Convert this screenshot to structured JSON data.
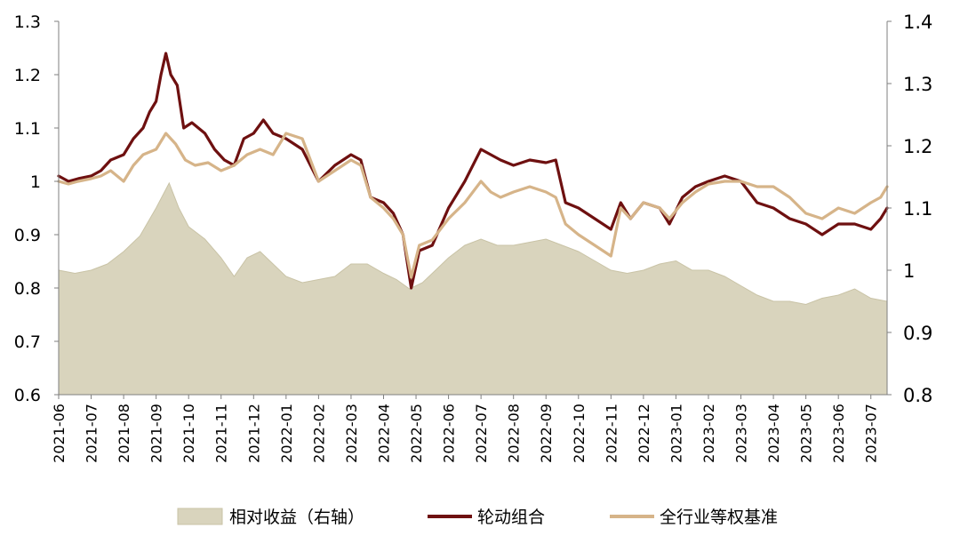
{
  "chart_data": {
    "type": "line",
    "x": [
      "2021-06",
      "2021-07",
      "2021-08",
      "2021-09",
      "2021-10",
      "2021-11",
      "2021-12",
      "2022-01",
      "2022-02",
      "2022-03",
      "2022-04",
      "2022-05",
      "2022-06",
      "2022-07",
      "2022-08",
      "2022-09",
      "2022-10",
      "2022-11",
      "2022-12",
      "2023-01",
      "2023-02",
      "2023-03",
      "2023-04",
      "2023-05",
      "2023-06",
      "2023-07"
    ],
    "ylim_left": [
      0.6,
      1.3
    ],
    "yticks_left": [
      "0.6",
      "0.7",
      "0.8",
      "0.9",
      "1",
      "1.1",
      "1.2",
      "1.3"
    ],
    "ylim_right": [
      0.8,
      1.4
    ],
    "yticks_right": [
      "0.8",
      "0.9",
      "1",
      "1.1",
      "1.2",
      "1.3",
      "1.4"
    ],
    "series": [
      {
        "name": "相对收益（右轴）",
        "type": "area",
        "axis": "right",
        "color": "#d9d4bd",
        "points": [
          [
            0,
            1.0
          ],
          [
            0.5,
            0.995
          ],
          [
            1,
            1.0
          ],
          [
            1.5,
            1.01
          ],
          [
            2,
            1.03
          ],
          [
            2.5,
            1.055
          ],
          [
            3,
            1.1
          ],
          [
            3.4,
            1.14
          ],
          [
            3.7,
            1.1
          ],
          [
            4,
            1.07
          ],
          [
            4.5,
            1.05
          ],
          [
            5,
            1.02
          ],
          [
            5.4,
            0.99
          ],
          [
            5.8,
            1.02
          ],
          [
            6.2,
            1.03
          ],
          [
            6.6,
            1.01
          ],
          [
            7,
            0.99
          ],
          [
            7.5,
            0.98
          ],
          [
            8,
            0.985
          ],
          [
            8.5,
            0.99
          ],
          [
            9,
            1.01
          ],
          [
            9.5,
            1.01
          ],
          [
            10,
            0.995
          ],
          [
            10.4,
            0.985
          ],
          [
            10.8,
            0.97
          ],
          [
            11.2,
            0.98
          ],
          [
            11.6,
            1.0
          ],
          [
            12,
            1.02
          ],
          [
            12.5,
            1.04
          ],
          [
            13,
            1.05
          ],
          [
            13.5,
            1.04
          ],
          [
            14,
            1.04
          ],
          [
            14.5,
            1.045
          ],
          [
            15,
            1.05
          ],
          [
            15.5,
            1.04
          ],
          [
            16,
            1.03
          ],
          [
            16.5,
            1.015
          ],
          [
            17,
            1.0
          ],
          [
            17.5,
            0.995
          ],
          [
            18,
            1.0
          ],
          [
            18.5,
            1.01
          ],
          [
            19,
            1.015
          ],
          [
            19.5,
            1.0
          ],
          [
            20,
            1.0
          ],
          [
            20.5,
            0.99
          ],
          [
            21,
            0.975
          ],
          [
            21.5,
            0.96
          ],
          [
            22,
            0.95
          ],
          [
            22.5,
            0.95
          ],
          [
            23,
            0.945
          ],
          [
            23.5,
            0.955
          ],
          [
            24,
            0.96
          ],
          [
            24.5,
            0.97
          ],
          [
            25,
            0.955
          ],
          [
            25.5,
            0.95
          ]
        ]
      },
      {
        "name": "轮动组合",
        "type": "line",
        "axis": "left",
        "color": "#6e1010",
        "points": [
          [
            0,
            1.01
          ],
          [
            0.3,
            1.0
          ],
          [
            0.6,
            1.005
          ],
          [
            1,
            1.01
          ],
          [
            1.3,
            1.02
          ],
          [
            1.6,
            1.04
          ],
          [
            2,
            1.05
          ],
          [
            2.3,
            1.08
          ],
          [
            2.6,
            1.1
          ],
          [
            2.8,
            1.13
          ],
          [
            3.0,
            1.15
          ],
          [
            3.15,
            1.2
          ],
          [
            3.3,
            1.24
          ],
          [
            3.45,
            1.2
          ],
          [
            3.65,
            1.18
          ],
          [
            3.85,
            1.1
          ],
          [
            4.1,
            1.11
          ],
          [
            4.5,
            1.09
          ],
          [
            4.8,
            1.06
          ],
          [
            5.1,
            1.04
          ],
          [
            5.4,
            1.03
          ],
          [
            5.7,
            1.08
          ],
          [
            6.0,
            1.09
          ],
          [
            6.3,
            1.115
          ],
          [
            6.6,
            1.09
          ],
          [
            7.0,
            1.08
          ],
          [
            7.5,
            1.06
          ],
          [
            8.0,
            1.0
          ],
          [
            8.5,
            1.03
          ],
          [
            9.0,
            1.05
          ],
          [
            9.3,
            1.04
          ],
          [
            9.6,
            0.97
          ],
          [
            10.0,
            0.96
          ],
          [
            10.3,
            0.94
          ],
          [
            10.6,
            0.9
          ],
          [
            10.85,
            0.8
          ],
          [
            11.1,
            0.87
          ],
          [
            11.5,
            0.88
          ],
          [
            12.0,
            0.95
          ],
          [
            12.5,
            1.0
          ],
          [
            13.0,
            1.06
          ],
          [
            13.3,
            1.05
          ],
          [
            13.6,
            1.04
          ],
          [
            14.0,
            1.03
          ],
          [
            14.5,
            1.04
          ],
          [
            15.0,
            1.035
          ],
          [
            15.3,
            1.04
          ],
          [
            15.6,
            0.96
          ],
          [
            16.0,
            0.95
          ],
          [
            16.5,
            0.93
          ],
          [
            17.0,
            0.91
          ],
          [
            17.3,
            0.96
          ],
          [
            17.6,
            0.93
          ],
          [
            18.0,
            0.96
          ],
          [
            18.5,
            0.95
          ],
          [
            18.8,
            0.92
          ],
          [
            19.2,
            0.97
          ],
          [
            19.6,
            0.99
          ],
          [
            20.0,
            1.0
          ],
          [
            20.5,
            1.01
          ],
          [
            21.0,
            1.0
          ],
          [
            21.5,
            0.96
          ],
          [
            22.0,
            0.95
          ],
          [
            22.5,
            0.93
          ],
          [
            23.0,
            0.92
          ],
          [
            23.5,
            0.9
          ],
          [
            24.0,
            0.92
          ],
          [
            24.5,
            0.92
          ],
          [
            25.0,
            0.91
          ],
          [
            25.3,
            0.93
          ],
          [
            25.5,
            0.95
          ]
        ]
      },
      {
        "name": "全行业等权基准",
        "type": "line",
        "axis": "left",
        "color": "#d6b489",
        "points": [
          [
            0,
            1.0
          ],
          [
            0.3,
            0.995
          ],
          [
            0.6,
            1.0
          ],
          [
            1,
            1.005
          ],
          [
            1.3,
            1.01
          ],
          [
            1.6,
            1.02
          ],
          [
            2,
            1.0
          ],
          [
            2.3,
            1.03
          ],
          [
            2.6,
            1.05
          ],
          [
            3.0,
            1.06
          ],
          [
            3.3,
            1.09
          ],
          [
            3.6,
            1.07
          ],
          [
            3.9,
            1.04
          ],
          [
            4.2,
            1.03
          ],
          [
            4.6,
            1.035
          ],
          [
            5.0,
            1.02
          ],
          [
            5.4,
            1.03
          ],
          [
            5.8,
            1.05
          ],
          [
            6.2,
            1.06
          ],
          [
            6.6,
            1.05
          ],
          [
            7.0,
            1.09
          ],
          [
            7.5,
            1.08
          ],
          [
            8.0,
            1.0
          ],
          [
            8.5,
            1.02
          ],
          [
            9.0,
            1.04
          ],
          [
            9.3,
            1.03
          ],
          [
            9.6,
            0.97
          ],
          [
            10.0,
            0.95
          ],
          [
            10.3,
            0.93
          ],
          [
            10.6,
            0.9
          ],
          [
            10.85,
            0.82
          ],
          [
            11.1,
            0.88
          ],
          [
            11.5,
            0.89
          ],
          [
            12.0,
            0.93
          ],
          [
            12.5,
            0.96
          ],
          [
            13.0,
            1.0
          ],
          [
            13.3,
            0.98
          ],
          [
            13.6,
            0.97
          ],
          [
            14.0,
            0.98
          ],
          [
            14.5,
            0.99
          ],
          [
            15.0,
            0.98
          ],
          [
            15.3,
            0.97
          ],
          [
            15.6,
            0.92
          ],
          [
            16.0,
            0.9
          ],
          [
            16.5,
            0.88
          ],
          [
            17.0,
            0.86
          ],
          [
            17.3,
            0.95
          ],
          [
            17.6,
            0.93
          ],
          [
            18.0,
            0.96
          ],
          [
            18.5,
            0.95
          ],
          [
            18.8,
            0.93
          ],
          [
            19.2,
            0.96
          ],
          [
            19.6,
            0.98
          ],
          [
            20.0,
            0.995
          ],
          [
            20.5,
            1.0
          ],
          [
            21.0,
            1.0
          ],
          [
            21.5,
            0.99
          ],
          [
            22.0,
            0.99
          ],
          [
            22.5,
            0.97
          ],
          [
            23.0,
            0.94
          ],
          [
            23.5,
            0.93
          ],
          [
            24.0,
            0.95
          ],
          [
            24.5,
            0.94
          ],
          [
            25.0,
            0.96
          ],
          [
            25.3,
            0.97
          ],
          [
            25.5,
            0.99
          ]
        ]
      }
    ],
    "legend_position": "bottom",
    "grid": false
  }
}
